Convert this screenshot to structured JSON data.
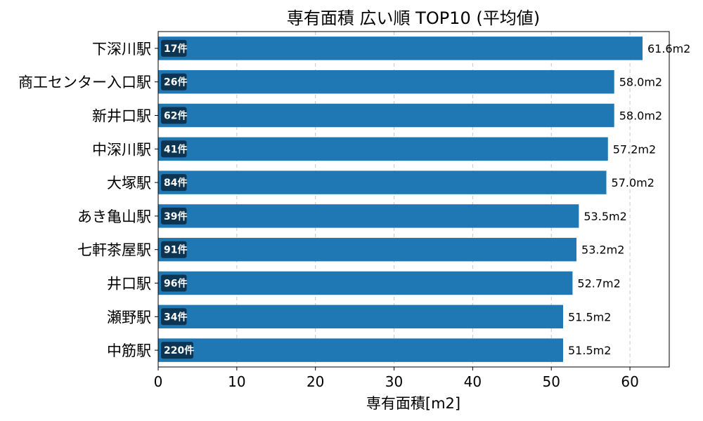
{
  "chart_data": {
    "type": "bar",
    "orientation": "horizontal",
    "title": "専有面積 広い順 TOP10 (平均値)",
    "xlabel": "専有面積[m2]",
    "ylabel": "",
    "xlim": [
      0,
      65
    ],
    "x_ticks": [
      0,
      10,
      20,
      30,
      40,
      50,
      60
    ],
    "grid": "vertical-dashed",
    "bar_color": "#1f77b4",
    "count_badge_color": "#0d3552",
    "categories": [
      "下深川駅",
      "商工センター入口駅",
      "新井口駅",
      "中深川駅",
      "大塚駅",
      "あき亀山駅",
      "七軒茶屋駅",
      "井口駅",
      "瀬野駅",
      "中筋駅"
    ],
    "values": [
      61.6,
      58.0,
      58.0,
      57.2,
      57.0,
      53.5,
      53.2,
      52.7,
      51.5,
      51.5
    ],
    "value_labels": [
      "61.6m2",
      "58.0m2",
      "58.0m2",
      "57.2m2",
      "57.0m2",
      "53.5m2",
      "53.2m2",
      "52.7m2",
      "51.5m2",
      "51.5m2"
    ],
    "counts": [
      "17件",
      "26件",
      "62件",
      "41件",
      "84件",
      "39件",
      "91件",
      "96件",
      "34件",
      "220件"
    ]
  }
}
